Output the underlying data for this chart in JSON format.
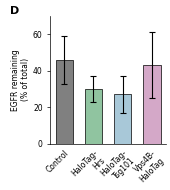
{
  "title": "D",
  "categories": [
    "Control",
    "HaloTag-\nHrs",
    "HaloTag-\nTsg101",
    "Vps4B-\nHaloTag"
  ],
  "values": [
    46,
    30,
    27,
    43
  ],
  "errors": [
    13,
    7,
    10,
    18
  ],
  "bar_colors": [
    "#808080",
    "#90c4a0",
    "#a8c8d8",
    "#d4a8c8"
  ],
  "ylabel": "EGFR remaining\n(% of total)",
  "ylim": [
    0,
    70
  ],
  "yticks": [
    0,
    20,
    40,
    60
  ],
  "background_color": "#ffffff",
  "bar_width": 0.6,
  "figsize": [
    1.7,
    1.9
  ],
  "dpi": 100
}
